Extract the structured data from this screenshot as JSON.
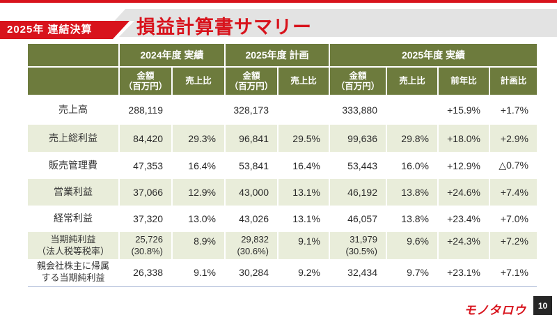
{
  "slide": {
    "badge": "2025年 連結決算",
    "title": "損益計算書サマリー",
    "logo": "モノタロウ",
    "page_number": "10"
  },
  "table": {
    "groups": [
      "2024年度 実績",
      "2025年度 計画",
      "2025年度 実績"
    ],
    "sub_headers": {
      "amount": "金額\n（百万円）",
      "sales_ratio": "売上比",
      "yoy": "前年比",
      "vs_plan": "計画比"
    },
    "rows": [
      {
        "label": "売上高",
        "cells": [
          "288,119",
          "",
          "328,173",
          "",
          "333,880",
          "",
          "+15.9%",
          "+1.7%"
        ]
      },
      {
        "label": "売上総利益",
        "cells": [
          "84,420",
          "29.3%",
          "96,841",
          "29.5%",
          "99,636",
          "29.8%",
          "+18.0%",
          "+2.9%"
        ]
      },
      {
        "label": "販売管理費",
        "cells": [
          "47,353",
          "16.4%",
          "53,841",
          "16.4%",
          "53,443",
          "16.0%",
          "+12.9%",
          "△0.7%"
        ]
      },
      {
        "label": "営業利益",
        "cells": [
          "37,066",
          "12.9%",
          "43,000",
          "13.1%",
          "46,192",
          "13.8%",
          "+24.6%",
          "+7.4%"
        ]
      },
      {
        "label": "経常利益",
        "cells": [
          "37,320",
          "13.0%",
          "43,026",
          "13.1%",
          "46,057",
          "13.8%",
          "+23.4%",
          "+7.0%"
        ]
      },
      {
        "label": "当期純利益\n（法人税等税率）",
        "cells": [
          "25,726\n(30.8%)",
          "8.9%",
          "29,832\n(30.6%)",
          "9.1%",
          "31,979\n(30.5%)",
          "9.6%",
          "+24.3%",
          "+7.2%"
        ]
      },
      {
        "label": "親会社株主に帰属\nする当期純利益",
        "cells": [
          "26,338",
          "9.1%",
          "30,284",
          "9.2%",
          "32,434",
          "9.7%",
          "+23.1%",
          "+7.1%"
        ]
      }
    ]
  },
  "colors": {
    "brand_red": "#d8131c",
    "header_green": "#6d7b3d",
    "row_green": "#e9edda",
    "strip_gray": "#e3e3e3",
    "divider_blue": "#b7c3dc"
  }
}
